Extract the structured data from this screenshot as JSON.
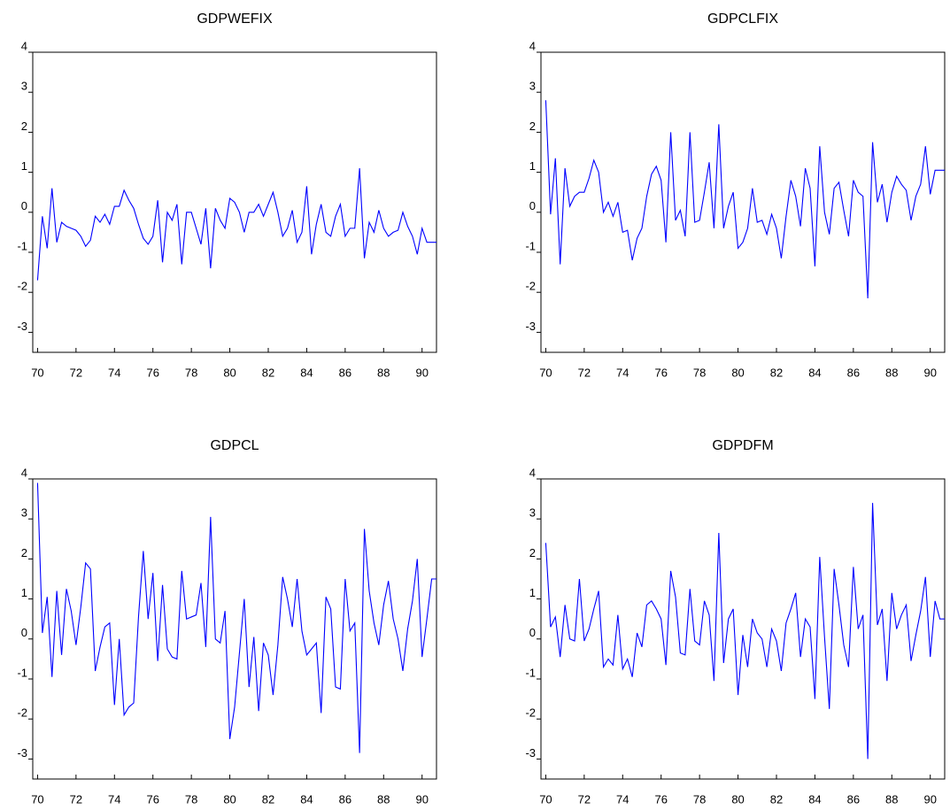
{
  "chart_data": [
    {
      "type": "line",
      "title": "GDPWEFIX",
      "x": [
        1970,
        1970.25,
        1970.5,
        1970.75,
        1971,
        1971.25,
        1971.5,
        1971.75,
        1972,
        1972.25,
        1972.5,
        1972.75,
        1973,
        1973.25,
        1973.5,
        1973.75,
        1974,
        1974.25,
        1974.5,
        1974.75,
        1975,
        1975.25,
        1975.5,
        1975.75,
        1976,
        1976.25,
        1976.5,
        1976.75,
        1977,
        1977.25,
        1977.5,
        1977.75,
        1978,
        1978.25,
        1978.5,
        1978.75,
        1979,
        1979.25,
        1979.5,
        1979.75,
        1980,
        1980.25,
        1980.5,
        1980.75,
        1981,
        1981.25,
        1981.5,
        1981.75,
        1982,
        1982.25,
        1982.5,
        1982.75,
        1983,
        1983.25,
        1983.5,
        1983.75,
        1984,
        1984.25,
        1984.5,
        1984.75,
        1985,
        1985.25,
        1985.5,
        1985.75,
        1986,
        1986.25,
        1986.5,
        1986.75,
        1987,
        1987.25,
        1987.5,
        1987.75,
        1988,
        1988.25,
        1988.5,
        1988.75,
        1989,
        1989.25,
        1989.5,
        1989.75,
        1990,
        1990.25,
        1990.5,
        1990.75
      ],
      "series": [
        {
          "color": "#0000ff",
          "values": [
            -1.7,
            -0.1,
            -0.9,
            0.6,
            -0.75,
            -0.25,
            -0.35,
            -0.4,
            -0.45,
            -0.6,
            -0.85,
            -0.7,
            -0.1,
            -0.25,
            -0.05,
            -0.3,
            0.15,
            0.15,
            0.55,
            0.3,
            0.1,
            -0.3,
            -0.65,
            -0.8,
            -0.6,
            0.3,
            -1.25,
            0.0,
            -0.2,
            0.2,
            -1.3,
            0.0,
            0.0,
            -0.4,
            -0.8,
            0.1,
            -1.4,
            0.1,
            -0.2,
            -0.4,
            0.35,
            0.25,
            0.0,
            -0.5,
            0.0,
            0.0,
            0.2,
            -0.1,
            0.2,
            0.5,
            0.0,
            -0.6,
            -0.4,
            0.05,
            -0.75,
            -0.5,
            0.65,
            -1.05,
            -0.3,
            0.2,
            -0.5,
            -0.6,
            -0.1,
            0.2,
            -0.6,
            -0.4,
            -0.4,
            1.1,
            -1.15,
            -0.25,
            -0.5,
            0.05,
            -0.4,
            -0.6,
            -0.5,
            -0.45,
            0.0,
            -0.35,
            -0.6,
            -1.05,
            -0.4,
            -0.75,
            -0.75,
            -0.75
          ]
        }
      ],
      "xlim": [
        1969.75,
        1990.75
      ],
      "xticks": [
        {
          "value": 1970,
          "label": "70"
        },
        {
          "value": 1972,
          "label": "72"
        },
        {
          "value": 1974,
          "label": "74"
        },
        {
          "value": 1976,
          "label": "76"
        },
        {
          "value": 1978,
          "label": "78"
        },
        {
          "value": 1980,
          "label": "80"
        },
        {
          "value": 1982,
          "label": "82"
        },
        {
          "value": 1984,
          "label": "84"
        },
        {
          "value": 1986,
          "label": "86"
        },
        {
          "value": 1988,
          "label": "88"
        },
        {
          "value": 1990,
          "label": "90"
        }
      ],
      "ylim": [
        -3.5,
        4
      ],
      "yticks": [
        -3,
        -2,
        -1,
        0,
        1,
        2,
        3,
        4
      ]
    },
    {
      "type": "line",
      "title": "GDPCLFIX",
      "x": [
        1970,
        1970.25,
        1970.5,
        1970.75,
        1971,
        1971.25,
        1971.5,
        1971.75,
        1972,
        1972.25,
        1972.5,
        1972.75,
        1973,
        1973.25,
        1973.5,
        1973.75,
        1974,
        1974.25,
        1974.5,
        1974.75,
        1975,
        1975.25,
        1975.5,
        1975.75,
        1976,
        1976.25,
        1976.5,
        1976.75,
        1977,
        1977.25,
        1977.5,
        1977.75,
        1978,
        1978.25,
        1978.5,
        1978.75,
        1979,
        1979.25,
        1979.5,
        1979.75,
        1980,
        1980.25,
        1980.5,
        1980.75,
        1981,
        1981.25,
        1981.5,
        1981.75,
        1982,
        1982.25,
        1982.5,
        1982.75,
        1983,
        1983.25,
        1983.5,
        1983.75,
        1984,
        1984.25,
        1984.5,
        1984.75,
        1985,
        1985.25,
        1985.5,
        1985.75,
        1986,
        1986.25,
        1986.5,
        1986.75,
        1987,
        1987.25,
        1987.5,
        1987.75,
        1988,
        1988.25,
        1988.5,
        1988.75,
        1989,
        1989.25,
        1989.5,
        1989.75,
        1990,
        1990.25,
        1990.5,
        1990.75
      ],
      "series": [
        {
          "color": "#0000ff",
          "values": [
            2.8,
            -0.05,
            1.35,
            -1.3,
            1.1,
            0.15,
            0.4,
            0.5,
            0.5,
            0.85,
            1.3,
            1.0,
            0.0,
            0.25,
            -0.1,
            0.25,
            -0.5,
            -0.45,
            -1.2,
            -0.65,
            -0.4,
            0.4,
            0.95,
            1.15,
            0.8,
            -0.75,
            2.0,
            -0.2,
            0.05,
            -0.6,
            2.0,
            -0.25,
            -0.2,
            0.5,
            1.25,
            -0.4,
            2.2,
            -0.4,
            0.15,
            0.5,
            -0.9,
            -0.75,
            -0.4,
            0.6,
            -0.25,
            -0.2,
            -0.55,
            -0.05,
            -0.4,
            -1.15,
            -0.1,
            0.8,
            0.4,
            -0.35,
            1.1,
            0.6,
            -1.35,
            1.65,
            0.0,
            -0.55,
            0.6,
            0.75,
            0.05,
            -0.6,
            0.8,
            0.5,
            0.4,
            -2.15,
            1.75,
            0.25,
            0.7,
            -0.25,
            0.5,
            0.9,
            0.7,
            0.55,
            -0.2,
            0.4,
            0.7,
            1.65,
            0.45,
            1.05,
            1.05,
            1.05
          ]
        }
      ],
      "xlim": [
        1969.75,
        1990.75
      ],
      "xticks": [
        {
          "value": 1970,
          "label": "70"
        },
        {
          "value": 1972,
          "label": "72"
        },
        {
          "value": 1974,
          "label": "74"
        },
        {
          "value": 1976,
          "label": "76"
        },
        {
          "value": 1978,
          "label": "78"
        },
        {
          "value": 1980,
          "label": "80"
        },
        {
          "value": 1982,
          "label": "82"
        },
        {
          "value": 1984,
          "label": "84"
        },
        {
          "value": 1986,
          "label": "86"
        },
        {
          "value": 1988,
          "label": "88"
        },
        {
          "value": 1990,
          "label": "90"
        }
      ],
      "ylim": [
        -3.5,
        4
      ],
      "yticks": [
        -3,
        -2,
        -1,
        0,
        1,
        2,
        3,
        4
      ]
    },
    {
      "type": "line",
      "title": "GDPCL",
      "x": [
        1970,
        1970.25,
        1970.5,
        1970.75,
        1971,
        1971.25,
        1971.5,
        1971.75,
        1972,
        1972.25,
        1972.5,
        1972.75,
        1973,
        1973.25,
        1973.5,
        1973.75,
        1974,
        1974.25,
        1974.5,
        1974.75,
        1975,
        1975.25,
        1975.5,
        1975.75,
        1976,
        1976.25,
        1976.5,
        1976.75,
        1977,
        1977.25,
        1977.5,
        1977.75,
        1978,
        1978.25,
        1978.5,
        1978.75,
        1979,
        1979.25,
        1979.5,
        1979.75,
        1980,
        1980.25,
        1980.5,
        1980.75,
        1981,
        1981.25,
        1981.5,
        1981.75,
        1982,
        1982.25,
        1982.5,
        1982.75,
        1983,
        1983.25,
        1983.5,
        1983.75,
        1984,
        1984.25,
        1984.5,
        1984.75,
        1985,
        1985.25,
        1985.5,
        1985.75,
        1986,
        1986.25,
        1986.5,
        1986.75,
        1987,
        1987.25,
        1987.5,
        1987.75,
        1988,
        1988.25,
        1988.5,
        1988.75,
        1989,
        1989.25,
        1989.5,
        1989.75,
        1990,
        1990.25,
        1990.5,
        1990.75
      ],
      "series": [
        {
          "color": "#0000ff",
          "values": [
            3.9,
            0.15,
            1.05,
            -0.95,
            1.2,
            -0.4,
            1.25,
            0.7,
            -0.15,
            0.8,
            1.9,
            1.75,
            -0.8,
            -0.2,
            0.3,
            0.4,
            -1.65,
            0.0,
            -1.9,
            -1.7,
            -1.6,
            0.55,
            2.2,
            0.5,
            1.65,
            -0.55,
            1.35,
            -0.25,
            -0.45,
            -0.5,
            1.7,
            0.5,
            0.55,
            0.6,
            1.4,
            -0.2,
            3.05,
            0.0,
            -0.1,
            0.7,
            -2.5,
            -1.7,
            -0.35,
            1.0,
            -1.2,
            0.05,
            -1.8,
            -0.1,
            -0.4,
            -1.4,
            -0.15,
            1.55,
            1.0,
            0.3,
            1.5,
            0.2,
            -0.4,
            -0.25,
            -0.1,
            -1.85,
            1.05,
            0.75,
            -1.2,
            -1.25,
            1.5,
            0.2,
            0.4,
            -2.85,
            2.75,
            1.2,
            0.4,
            -0.15,
            0.85,
            1.45,
            0.5,
            0.0,
            -0.8,
            0.25,
            0.95,
            2.0,
            -0.45,
            0.5,
            1.5,
            1.5
          ]
        }
      ],
      "xlim": [
        1969.75,
        1990.75
      ],
      "xticks": [
        {
          "value": 1970,
          "label": "70"
        },
        {
          "value": 1972,
          "label": "72"
        },
        {
          "value": 1974,
          "label": "74"
        },
        {
          "value": 1976,
          "label": "76"
        },
        {
          "value": 1978,
          "label": "78"
        },
        {
          "value": 1980,
          "label": "80"
        },
        {
          "value": 1982,
          "label": "82"
        },
        {
          "value": 1984,
          "label": "84"
        },
        {
          "value": 1986,
          "label": "86"
        },
        {
          "value": 1988,
          "label": "88"
        },
        {
          "value": 1990,
          "label": "90"
        }
      ],
      "ylim": [
        -3.5,
        4
      ],
      "yticks": [
        -3,
        -2,
        -1,
        0,
        1,
        2,
        3,
        4
      ]
    },
    {
      "type": "line",
      "title": "GDPDFM",
      "x": [
        1970,
        1970.25,
        1970.5,
        1970.75,
        1971,
        1971.25,
        1971.5,
        1971.75,
        1972,
        1972.25,
        1972.5,
        1972.75,
        1973,
        1973.25,
        1973.5,
        1973.75,
        1974,
        1974.25,
        1974.5,
        1974.75,
        1975,
        1975.25,
        1975.5,
        1975.75,
        1976,
        1976.25,
        1976.5,
        1976.75,
        1977,
        1977.25,
        1977.5,
        1977.75,
        1978,
        1978.25,
        1978.5,
        1978.75,
        1979,
        1979.25,
        1979.5,
        1979.75,
        1980,
        1980.25,
        1980.5,
        1980.75,
        1981,
        1981.25,
        1981.5,
        1981.75,
        1982,
        1982.25,
        1982.5,
        1982.75,
        1983,
        1983.25,
        1983.5,
        1983.75,
        1984,
        1984.25,
        1984.5,
        1984.75,
        1985,
        1985.25,
        1985.5,
        1985.75,
        1986,
        1986.25,
        1986.5,
        1986.75,
        1987,
        1987.25,
        1987.5,
        1987.75,
        1988,
        1988.25,
        1988.5,
        1988.75,
        1989,
        1989.25,
        1989.5,
        1989.75,
        1990,
        1990.25,
        1990.5,
        1990.75
      ],
      "series": [
        {
          "color": "#0000ff",
          "values": [
            2.4,
            0.3,
            0.55,
            -0.45,
            0.85,
            0.0,
            -0.05,
            1.5,
            -0.05,
            0.25,
            0.75,
            1.2,
            -0.7,
            -0.5,
            -0.65,
            0.6,
            -0.75,
            -0.5,
            -0.95,
            0.15,
            -0.2,
            0.85,
            0.95,
            0.75,
            0.5,
            -0.65,
            1.7,
            1.05,
            -0.35,
            -0.4,
            1.25,
            -0.05,
            -0.15,
            0.95,
            0.6,
            -1.05,
            2.65,
            -0.6,
            0.5,
            0.75,
            -1.4,
            0.1,
            -0.7,
            0.5,
            0.15,
            0.0,
            -0.7,
            0.25,
            -0.05,
            -0.8,
            0.4,
            0.75,
            1.15,
            -0.45,
            0.5,
            0.3,
            -1.5,
            2.05,
            0.05,
            -1.75,
            1.75,
            0.85,
            -0.15,
            -0.7,
            1.8,
            0.25,
            0.6,
            -3.0,
            3.4,
            0.35,
            0.75,
            -1.05,
            1.15,
            0.25,
            0.6,
            0.85,
            -0.55,
            0.1,
            0.7,
            1.55,
            -0.45,
            0.95,
            0.5,
            0.5
          ]
        }
      ],
      "xlim": [
        1969.75,
        1990.75
      ],
      "xticks": [
        {
          "value": 1970,
          "label": "70"
        },
        {
          "value": 1972,
          "label": "72"
        },
        {
          "value": 1974,
          "label": "74"
        },
        {
          "value": 1976,
          "label": "76"
        },
        {
          "value": 1978,
          "label": "78"
        },
        {
          "value": 1980,
          "label": "80"
        },
        {
          "value": 1982,
          "label": "82"
        },
        {
          "value": 1984,
          "label": "84"
        },
        {
          "value": 1986,
          "label": "86"
        },
        {
          "value": 1988,
          "label": "88"
        },
        {
          "value": 1990,
          "label": "90"
        }
      ],
      "ylim": [
        -3.5,
        4
      ],
      "yticks": [
        -3,
        -2,
        -1,
        0,
        1,
        2,
        3,
        4
      ]
    }
  ]
}
